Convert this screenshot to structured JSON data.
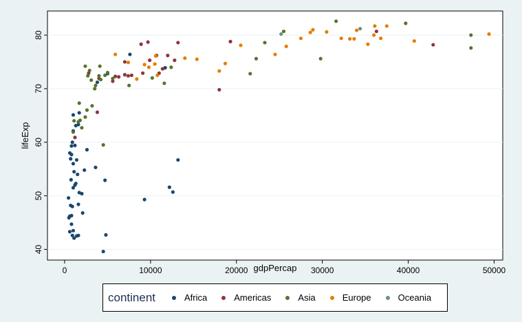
{
  "chart_data": {
    "type": "scatter",
    "title": "",
    "xlabel": "gdpPercap",
    "ylabel": "lifeExp",
    "xlim": [
      -2000,
      51000
    ],
    "ylim": [
      38,
      84.5
    ],
    "xticks": [
      0,
      10000,
      20000,
      30000,
      40000,
      50000
    ],
    "xtick_labels": [
      "0",
      "10000",
      "20000",
      "30000",
      "40000",
      "50000"
    ],
    "yticks": [
      40,
      50,
      60,
      70,
      80
    ],
    "ytick_labels": [
      "40",
      "50",
      "60",
      "70",
      "80"
    ],
    "grid": true,
    "legend_position": "bottom",
    "legend_title": "continent",
    "series": [
      {
        "name": "Africa",
        "color": "#1A476F",
        "points": [
          [
            500,
            45.9
          ],
          [
            600,
            46.2
          ],
          [
            800,
            46.3
          ],
          [
            450,
            49.6
          ],
          [
            700,
            48.2
          ],
          [
            900,
            48.0
          ],
          [
            800,
            44.7
          ],
          [
            1000,
            43.5
          ],
          [
            600,
            43.3
          ],
          [
            900,
            42.6
          ],
          [
            1100,
            42.1
          ],
          [
            1400,
            42.5
          ],
          [
            1600,
            42.6
          ],
          [
            750,
            53.0
          ],
          [
            1200,
            52.0
          ],
          [
            1000,
            51.5
          ],
          [
            1300,
            52.3
          ],
          [
            1500,
            54.0
          ],
          [
            1700,
            50.6
          ],
          [
            2000,
            50.4
          ],
          [
            1600,
            48.4
          ],
          [
            2100,
            46.8
          ],
          [
            1100,
            54.5
          ],
          [
            2300,
            54.8
          ],
          [
            700,
            56.9
          ],
          [
            600,
            58.0
          ],
          [
            800,
            57.7
          ],
          [
            1000,
            56.0
          ],
          [
            1400,
            56.7
          ],
          [
            800,
            59.3
          ],
          [
            900,
            60.0
          ],
          [
            1200,
            59.4
          ],
          [
            1000,
            62.1
          ],
          [
            1300,
            63.1
          ],
          [
            1000,
            65.1
          ],
          [
            1600,
            63.3
          ],
          [
            1700,
            65.5
          ],
          [
            2600,
            58.6
          ],
          [
            3600,
            55.3
          ],
          [
            4500,
            39.6
          ],
          [
            4800,
            42.7
          ],
          [
            4700,
            52.9
          ],
          [
            9300,
            49.3
          ],
          [
            12200,
            51.6
          ],
          [
            12600,
            50.7
          ],
          [
            13200,
            56.7
          ],
          [
            7600,
            76.4
          ],
          [
            11700,
            73.9
          ],
          [
            3800,
            71.2
          ],
          [
            5000,
            72.8
          ]
        ]
      },
      {
        "name": "Americas",
        "color": "#90353B",
        "points": [
          [
            1200,
            60.9
          ],
          [
            3800,
            65.6
          ],
          [
            2800,
            72.9
          ],
          [
            4000,
            71.9
          ],
          [
            5600,
            71.4
          ],
          [
            5900,
            72.3
          ],
          [
            6300,
            72.2
          ],
          [
            7000,
            75.0
          ],
          [
            7000,
            72.6
          ],
          [
            7400,
            72.4
          ],
          [
            7800,
            72.5
          ],
          [
            8900,
            78.3
          ],
          [
            9100,
            72.9
          ],
          [
            9700,
            78.7
          ],
          [
            9900,
            75.3
          ],
          [
            10700,
            76.2
          ],
          [
            11000,
            72.9
          ],
          [
            11400,
            73.7
          ],
          [
            12000,
            76.2
          ],
          [
            12800,
            75.3
          ],
          [
            13200,
            78.6
          ],
          [
            18000,
            69.8
          ],
          [
            19300,
            78.8
          ],
          [
            36300,
            80.7
          ],
          [
            42900,
            78.2
          ]
        ]
      },
      {
        "name": "Asia",
        "color": "#55752F",
        "points": [
          [
            1600,
            63.8
          ],
          [
            1800,
            64.1
          ],
          [
            2000,
            62.7
          ],
          [
            1700,
            67.3
          ],
          [
            2400,
            64.7
          ],
          [
            2400,
            74.2
          ],
          [
            2600,
            66.0
          ],
          [
            2700,
            72.4
          ],
          [
            2900,
            73.4
          ],
          [
            3100,
            71.6
          ],
          [
            3200,
            66.8
          ],
          [
            3500,
            70.0
          ],
          [
            3600,
            70.6
          ],
          [
            4000,
            72.4
          ],
          [
            4100,
            74.2
          ],
          [
            4200,
            71.7
          ],
          [
            4500,
            59.5
          ],
          [
            4700,
            72.5
          ],
          [
            5000,
            73.0
          ],
          [
            5600,
            71.9
          ],
          [
            7500,
            70.6
          ],
          [
            10200,
            72.0
          ],
          [
            11600,
            71.0
          ],
          [
            12400,
            74.0
          ],
          [
            21600,
            72.8
          ],
          [
            22300,
            75.6
          ],
          [
            23300,
            78.6
          ],
          [
            25500,
            80.7
          ],
          [
            29800,
            75.6
          ],
          [
            31600,
            82.6
          ],
          [
            39700,
            82.2
          ],
          [
            47300,
            80.0
          ],
          [
            47300,
            77.6
          ],
          [
            1100,
            64.0
          ],
          [
            1000,
            61.9
          ]
        ]
      },
      {
        "name": "Europe",
        "color": "#E37E00",
        "points": [
          [
            5900,
            76.4
          ],
          [
            7400,
            74.9
          ],
          [
            8400,
            71.8
          ],
          [
            9300,
            74.5
          ],
          [
            9800,
            74.0
          ],
          [
            10500,
            74.6
          ],
          [
            10800,
            72.5
          ],
          [
            14000,
            75.7
          ],
          [
            15400,
            75.5
          ],
          [
            18000,
            73.3
          ],
          [
            18700,
            74.7
          ],
          [
            20500,
            78.1
          ],
          [
            24500,
            76.4
          ],
          [
            25800,
            77.9
          ],
          [
            27500,
            79.4
          ],
          [
            28600,
            80.5
          ],
          [
            28900,
            81.0
          ],
          [
            30500,
            80.6
          ],
          [
            32200,
            79.4
          ],
          [
            33200,
            79.3
          ],
          [
            33700,
            79.3
          ],
          [
            34000,
            80.9
          ],
          [
            35300,
            78.3
          ],
          [
            36000,
            80.0
          ],
          [
            36100,
            81.7
          ],
          [
            36800,
            79.4
          ],
          [
            37500,
            81.7
          ],
          [
            40700,
            78.9
          ],
          [
            49400,
            80.2
          ],
          [
            10600,
            76.1
          ]
        ]
      },
      {
        "name": "Oceania",
        "color": "#6E8E84",
        "points": [
          [
            25200,
            80.2
          ],
          [
            34400,
            81.2
          ]
        ]
      }
    ]
  }
}
